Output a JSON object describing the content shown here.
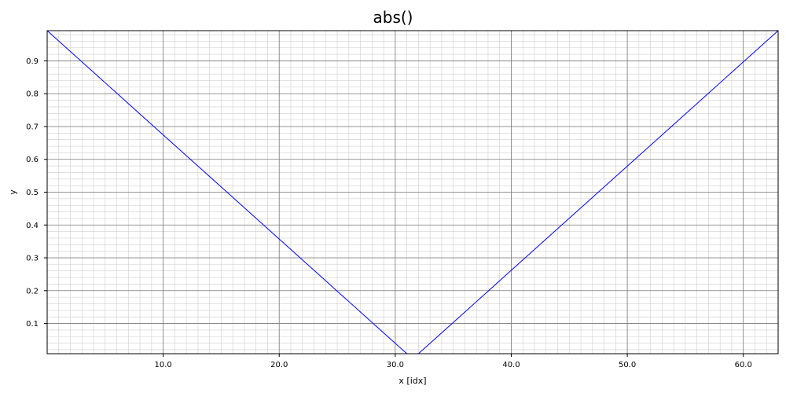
{
  "chart_data": {
    "type": "line",
    "title": "abs()",
    "xlabel": "x [idx]",
    "ylabel": "y",
    "xlim": [
      0,
      63
    ],
    "ylim": [
      0.0079,
      0.9921
    ],
    "grid": true,
    "legend": "none",
    "x_ticks": [
      10,
      20,
      30,
      40,
      50,
      60
    ],
    "x_tick_labels": [
      "10.0",
      "20.0",
      "30.0",
      "40.0",
      "50.0",
      "60.0"
    ],
    "y_ticks": [
      0.1,
      0.2,
      0.3,
      0.4,
      0.5,
      0.6,
      0.7,
      0.8,
      0.9
    ],
    "y_tick_labels": [
      "0.1",
      "0.2",
      "0.3",
      "0.4",
      "0.5",
      "0.6",
      "0.7",
      "0.8",
      "0.9"
    ],
    "series": [
      {
        "color": "#0000ff",
        "x_start": 0,
        "x_step": 1,
        "values": [
          0.9921,
          0.9603,
          0.9286,
          0.8968,
          0.8651,
          0.8333,
          0.8016,
          0.7698,
          0.7381,
          0.7063,
          0.6746,
          0.6429,
          0.6111,
          0.5794,
          0.5476,
          0.5159,
          0.4841,
          0.4524,
          0.4206,
          0.3889,
          0.3571,
          0.3254,
          0.2937,
          0.2619,
          0.2302,
          0.1984,
          0.1667,
          0.1349,
          0.1032,
          0.0714,
          0.0397,
          0.0079,
          0.0079,
          0.0397,
          0.0714,
          0.1032,
          0.1349,
          0.1667,
          0.1984,
          0.2302,
          0.2619,
          0.2937,
          0.3254,
          0.3571,
          0.3889,
          0.4206,
          0.4524,
          0.4841,
          0.5159,
          0.5476,
          0.5794,
          0.6111,
          0.6429,
          0.6746,
          0.7063,
          0.7381,
          0.7698,
          0.8016,
          0.8333,
          0.8651,
          0.8968,
          0.9286,
          0.9603,
          0.9921
        ]
      }
    ]
  }
}
